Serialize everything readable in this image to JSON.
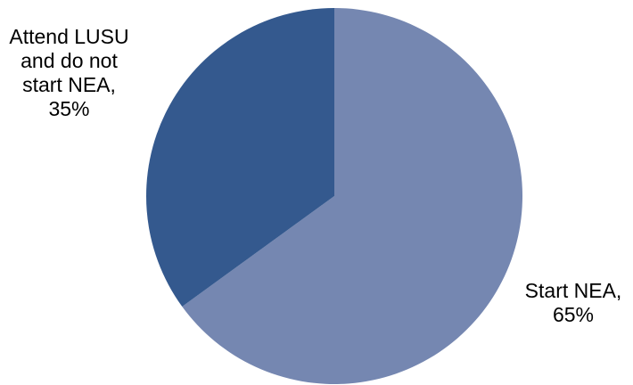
{
  "chart_data": {
    "type": "pie",
    "title": "",
    "start_angle_deg": 0,
    "direction": "clockwise",
    "legend": "none",
    "slices": [
      {
        "label": "Start NEA,\n65%",
        "value": 65,
        "color": "#7587b1"
      },
      {
        "label": "Attend LUSU\nand do not\nstart NEA,\n35%",
        "value": 35,
        "color": "#34598e"
      }
    ]
  }
}
